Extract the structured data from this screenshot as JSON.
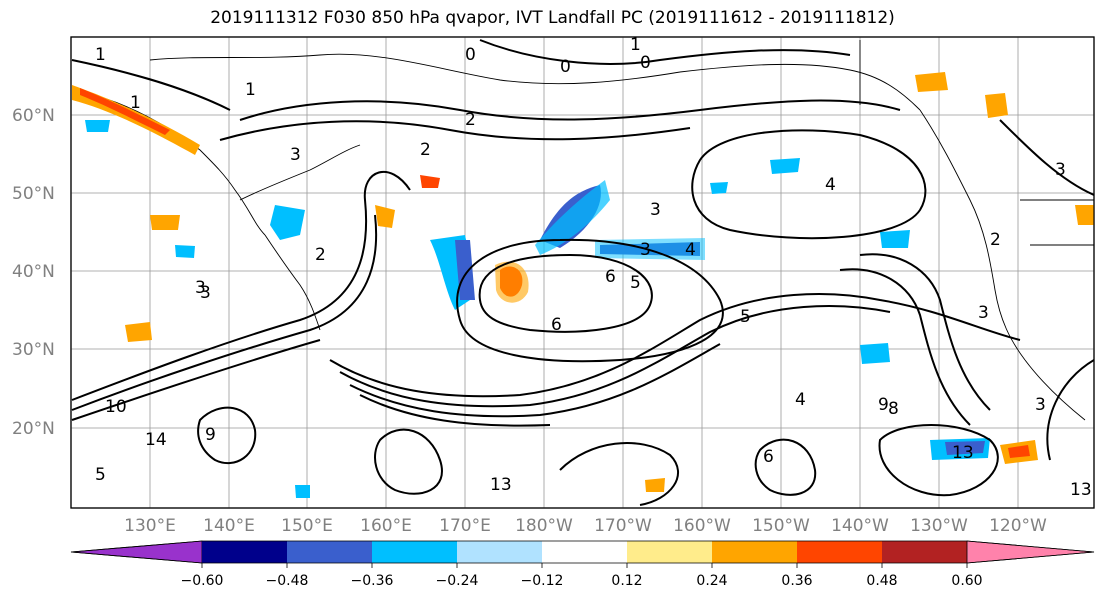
{
  "title": "2019111312 F030 850 hPa qvapor, IVT Landfall PC (2019111612 - 2019111812)",
  "lat_labels": [
    "60°N",
    "50°N",
    "40°N",
    "30°N",
    "20°N"
  ],
  "lon_labels": [
    "130°E",
    "140°E",
    "150°E",
    "160°E",
    "170°E",
    "180°W",
    "170°W",
    "160°W",
    "150°W",
    "140°W",
    "130°W",
    "120°W"
  ],
  "colorbar": {
    "colors": [
      "#9932cc",
      "#00008b",
      "#3a5fcd",
      "#00bfff",
      "#b0e2ff",
      "#ffffff",
      "#ffec8b",
      "#ffa500",
      "#ff4500",
      "#b22222",
      "#ff82ab"
    ],
    "tick_labels": [
      "−0.60",
      "−0.48",
      "−0.36",
      "−0.24",
      "−0.12",
      "0.12",
      "0.24",
      "0.36",
      "0.48",
      "0.60"
    ]
  },
  "contour_labels": [
    "1",
    "1",
    "1",
    "0",
    "0",
    "0",
    "1",
    "2",
    "2",
    "3",
    "3",
    "2",
    "3",
    "4",
    "3",
    "4",
    "6",
    "5",
    "6",
    "5",
    "3",
    "10",
    "14",
    "9",
    "5",
    "3",
    "13",
    "13",
    "3",
    "4",
    "6",
    "8",
    "9",
    "13",
    "3",
    "2"
  ]
}
